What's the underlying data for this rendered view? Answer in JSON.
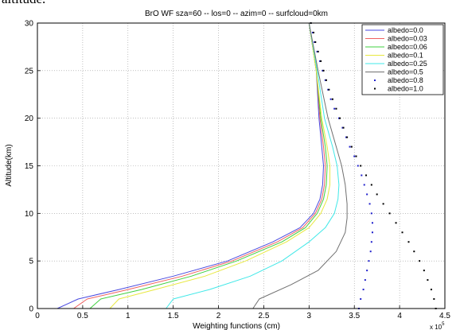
{
  "page": {
    "caption": "altitude."
  },
  "chart_data": {
    "type": "line",
    "title": "BrO WF sza=60 -- los=0 -- azim=0 -- surfcloud=0km",
    "xlabel": "Weighting functions (cm)",
    "ylabel": "Altitude(km)",
    "x_multiplier": "x 10",
    "x_multiplier_exp": "5",
    "xlim": [
      0,
      4.5
    ],
    "ylim": [
      0,
      30
    ],
    "xticks": [
      0,
      0.5,
      1,
      1.5,
      2,
      2.5,
      3,
      3.5,
      4,
      4.5
    ],
    "yticks": [
      0,
      5,
      10,
      15,
      20,
      25,
      30
    ],
    "grid": true,
    "legend_position": "top-right",
    "series": [
      {
        "name": "albedo=0.0",
        "color": "#4a4ae0",
        "style": "line",
        "points": [
          [
            0.22,
            0
          ],
          [
            0.45,
            1
          ],
          [
            0.9,
            2
          ],
          [
            1.5,
            3.4
          ],
          [
            2.1,
            5
          ],
          [
            2.6,
            7
          ],
          [
            2.9,
            8.5
          ],
          [
            3.05,
            10
          ],
          [
            3.12,
            11.5
          ],
          [
            3.15,
            13
          ],
          [
            3.16,
            15
          ],
          [
            3.14,
            17
          ],
          [
            3.11,
            20
          ],
          [
            3.08,
            25
          ],
          [
            3.0,
            30
          ]
        ]
      },
      {
        "name": "albedo=0.03",
        "color": "#f06060",
        "style": "line",
        "points": [
          [
            0.4,
            0
          ],
          [
            0.55,
            1
          ],
          [
            1.0,
            2
          ],
          [
            1.6,
            3.4
          ],
          [
            2.15,
            5
          ],
          [
            2.65,
            7
          ],
          [
            2.93,
            8.5
          ],
          [
            3.07,
            10
          ],
          [
            3.14,
            11.5
          ],
          [
            3.17,
            13
          ],
          [
            3.18,
            15
          ],
          [
            3.16,
            17
          ],
          [
            3.12,
            20
          ],
          [
            3.08,
            25
          ],
          [
            3.0,
            30
          ]
        ]
      },
      {
        "name": "albedo=0.06",
        "color": "#40d040",
        "style": "line",
        "points": [
          [
            0.58,
            0
          ],
          [
            0.7,
            1
          ],
          [
            1.15,
            2
          ],
          [
            1.7,
            3.4
          ],
          [
            2.2,
            5
          ],
          [
            2.7,
            7
          ],
          [
            2.96,
            8.5
          ],
          [
            3.09,
            10
          ],
          [
            3.16,
            11.5
          ],
          [
            3.19,
            13
          ],
          [
            3.2,
            15
          ],
          [
            3.18,
            17
          ],
          [
            3.13,
            20
          ],
          [
            3.08,
            25
          ],
          [
            3.0,
            30
          ]
        ]
      },
      {
        "name": "albedo=0.1",
        "color": "#e8e840",
        "style": "line",
        "points": [
          [
            0.8,
            0
          ],
          [
            0.9,
            1
          ],
          [
            1.3,
            2
          ],
          [
            1.85,
            3.4
          ],
          [
            2.3,
            5
          ],
          [
            2.75,
            7
          ],
          [
            3.0,
            8.5
          ],
          [
            3.13,
            10
          ],
          [
            3.2,
            11.5
          ],
          [
            3.23,
            13
          ],
          [
            3.23,
            15
          ],
          [
            3.2,
            17
          ],
          [
            3.14,
            20
          ],
          [
            3.08,
            25
          ],
          [
            3.0,
            30
          ]
        ]
      },
      {
        "name": "albedo=0.25",
        "color": "#40e8e8",
        "style": "line",
        "points": [
          [
            1.42,
            0
          ],
          [
            1.5,
            1
          ],
          [
            1.9,
            2
          ],
          [
            2.35,
            3.4
          ],
          [
            2.7,
            5
          ],
          [
            3.0,
            7
          ],
          [
            3.18,
            8.5
          ],
          [
            3.28,
            10
          ],
          [
            3.32,
            11.5
          ],
          [
            3.33,
            13
          ],
          [
            3.31,
            15
          ],
          [
            3.26,
            17
          ],
          [
            3.17,
            20
          ],
          [
            3.09,
            25
          ],
          [
            3.0,
            30
          ]
        ]
      },
      {
        "name": "albedo=0.5",
        "color": "#707070",
        "style": "line",
        "points": [
          [
            2.38,
            0
          ],
          [
            2.45,
            1
          ],
          [
            2.8,
            2.5
          ],
          [
            3.1,
            4
          ],
          [
            3.3,
            6
          ],
          [
            3.4,
            8
          ],
          [
            3.42,
            9.5
          ],
          [
            3.42,
            11
          ],
          [
            3.4,
            13
          ],
          [
            3.36,
            15
          ],
          [
            3.3,
            17
          ],
          [
            3.21,
            20
          ],
          [
            3.1,
            25
          ],
          [
            3.0,
            30
          ]
        ]
      },
      {
        "name": "albedo=0.8",
        "color": "#2020cc",
        "style": "dots",
        "points": [
          [
            3.55,
            0
          ],
          [
            3.57,
            1
          ],
          [
            3.6,
            2
          ],
          [
            3.62,
            3
          ],
          [
            3.64,
            4
          ],
          [
            3.66,
            5
          ],
          [
            3.68,
            6
          ],
          [
            3.69,
            7
          ],
          [
            3.7,
            8
          ],
          [
            3.7,
            9
          ],
          [
            3.69,
            10
          ],
          [
            3.67,
            11
          ],
          [
            3.64,
            12
          ],
          [
            3.61,
            13
          ],
          [
            3.58,
            14
          ],
          [
            3.54,
            15
          ],
          [
            3.5,
            16
          ],
          [
            3.45,
            17
          ],
          [
            3.41,
            18
          ],
          [
            3.37,
            19
          ],
          [
            3.33,
            20
          ],
          [
            3.28,
            21
          ],
          [
            3.24,
            22
          ],
          [
            3.21,
            23
          ],
          [
            3.18,
            24
          ],
          [
            3.15,
            25
          ],
          [
            3.12,
            26
          ],
          [
            3.09,
            27
          ],
          [
            3.06,
            28
          ],
          [
            3.04,
            29
          ],
          [
            3.02,
            30
          ]
        ]
      },
      {
        "name": "albedo=1.0",
        "color": "#000000",
        "style": "dots",
        "points": [
          [
            4.4,
            0
          ],
          [
            4.38,
            1
          ],
          [
            4.35,
            2
          ],
          [
            4.31,
            3
          ],
          [
            4.27,
            4
          ],
          [
            4.22,
            5
          ],
          [
            4.16,
            6
          ],
          [
            4.1,
            7
          ],
          [
            4.03,
            8
          ],
          [
            3.96,
            9
          ],
          [
            3.89,
            10
          ],
          [
            3.82,
            11
          ],
          [
            3.75,
            12
          ],
          [
            3.69,
            13
          ],
          [
            3.63,
            14
          ],
          [
            3.57,
            15
          ],
          [
            3.52,
            16
          ],
          [
            3.47,
            17
          ],
          [
            3.42,
            18
          ],
          [
            3.38,
            19
          ],
          [
            3.34,
            20
          ],
          [
            3.3,
            21
          ],
          [
            3.26,
            22
          ],
          [
            3.22,
            23
          ],
          [
            3.19,
            24
          ],
          [
            3.16,
            25
          ],
          [
            3.13,
            26
          ],
          [
            3.1,
            27
          ],
          [
            3.07,
            28
          ],
          [
            3.05,
            29
          ],
          [
            3.02,
            30
          ]
        ]
      }
    ]
  }
}
